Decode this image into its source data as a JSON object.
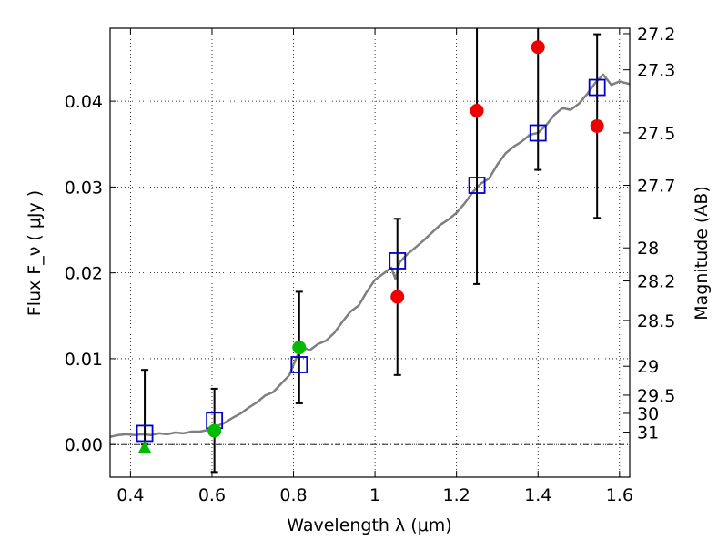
{
  "chart_data": {
    "type": "scatter",
    "xlabel": "Wavelength  λ (μm)",
    "ylabel": "Flux  F_ν  ( μJy )",
    "y2label": "Magnitude (AB)",
    "xlim": [
      0.35,
      1.625
    ],
    "ylim": [
      -0.0038,
      0.0485
    ],
    "grid": true,
    "x_ticks": [
      {
        "v": 0.4,
        "label": "0.4"
      },
      {
        "v": 0.6,
        "label": "0.6"
      },
      {
        "v": 0.8,
        "label": "0.8"
      },
      {
        "v": 1.0,
        "label": "1"
      },
      {
        "v": 1.2,
        "label": "1.2"
      },
      {
        "v": 1.4,
        "label": "1.4"
      },
      {
        "v": 1.6,
        "label": "1.6"
      }
    ],
    "y_ticks": [
      {
        "v": 0.0,
        "label": "0.00"
      },
      {
        "v": 0.01,
        "label": "0.01"
      },
      {
        "v": 0.02,
        "label": "0.02"
      },
      {
        "v": 0.03,
        "label": "0.03"
      },
      {
        "v": 0.04,
        "label": "0.04"
      }
    ],
    "magnitude_ticks": [
      {
        "mag": 27.2,
        "label": "27.2"
      },
      {
        "mag": 27.3,
        "label": "27.3"
      },
      {
        "mag": 27.5,
        "label": "27.5"
      },
      {
        "mag": 27.7,
        "label": "27.7"
      },
      {
        "mag": 28.0,
        "label": "28"
      },
      {
        "mag": 28.2,
        "label": "28.2"
      },
      {
        "mag": 28.5,
        "label": "28.5"
      },
      {
        "mag": 29.0,
        "label": "29"
      },
      {
        "mag": 29.5,
        "label": "29.5"
      },
      {
        "mag": 30.0,
        "label": "30"
      },
      {
        "mag": 31.0,
        "label": "31"
      }
    ],
    "model_spectrum": {
      "color": "#7f7f7f",
      "points": [
        [
          0.35,
          0.0009
        ],
        [
          0.37,
          0.0011
        ],
        [
          0.39,
          0.0012
        ],
        [
          0.41,
          0.0011
        ],
        [
          0.43,
          0.0012
        ],
        [
          0.45,
          0.0011
        ],
        [
          0.47,
          0.0013
        ],
        [
          0.49,
          0.0012
        ],
        [
          0.51,
          0.0014
        ],
        [
          0.53,
          0.0013
        ],
        [
          0.55,
          0.0015
        ],
        [
          0.57,
          0.0015
        ],
        [
          0.59,
          0.0017
        ],
        [
          0.61,
          0.0021
        ],
        [
          0.63,
          0.0025
        ],
        [
          0.65,
          0.0031
        ],
        [
          0.67,
          0.0036
        ],
        [
          0.69,
          0.0043
        ],
        [
          0.71,
          0.0049
        ],
        [
          0.73,
          0.0057
        ],
        [
          0.75,
          0.0061
        ],
        [
          0.77,
          0.0071
        ],
        [
          0.79,
          0.0081
        ],
        [
          0.8,
          0.0093
        ],
        [
          0.81,
          0.0104
        ],
        [
          0.82,
          0.011
        ],
        [
          0.83,
          0.0112
        ],
        [
          0.84,
          0.011
        ],
        [
          0.86,
          0.0117
        ],
        [
          0.88,
          0.0121
        ],
        [
          0.9,
          0.013
        ],
        [
          0.92,
          0.0143
        ],
        [
          0.94,
          0.0155
        ],
        [
          0.96,
          0.0162
        ],
        [
          0.98,
          0.0178
        ],
        [
          1.0,
          0.0192
        ],
        [
          1.02,
          0.0199
        ],
        [
          1.04,
          0.0206
        ],
        [
          1.05,
          0.0193
        ],
        [
          1.06,
          0.0212
        ],
        [
          1.08,
          0.0222
        ],
        [
          1.1,
          0.023
        ],
        [
          1.12,
          0.0238
        ],
        [
          1.14,
          0.0247
        ],
        [
          1.16,
          0.0256
        ],
        [
          1.18,
          0.0262
        ],
        [
          1.2,
          0.027
        ],
        [
          1.22,
          0.0281
        ],
        [
          1.24,
          0.0294
        ],
        [
          1.26,
          0.0304
        ],
        [
          1.28,
          0.031
        ],
        [
          1.3,
          0.0326
        ],
        [
          1.32,
          0.0339
        ],
        [
          1.34,
          0.0347
        ],
        [
          1.36,
          0.0353
        ],
        [
          1.38,
          0.0361
        ],
        [
          1.4,
          0.0363
        ],
        [
          1.42,
          0.0372
        ],
        [
          1.44,
          0.0384
        ],
        [
          1.46,
          0.0392
        ],
        [
          1.48,
          0.039
        ],
        [
          1.5,
          0.0397
        ],
        [
          1.52,
          0.0408
        ],
        [
          1.54,
          0.0421
        ],
        [
          1.56,
          0.0431
        ],
        [
          1.58,
          0.0419
        ],
        [
          1.6,
          0.0423
        ],
        [
          1.625,
          0.042
        ]
      ]
    },
    "model_band_fluxes": {
      "marker": "open-square",
      "color": "#0000cc",
      "points": [
        [
          0.435,
          0.0013
        ],
        [
          0.606,
          0.0028
        ],
        [
          0.814,
          0.0093
        ],
        [
          1.055,
          0.0214
        ],
        [
          1.25,
          0.0302
        ],
        [
          1.4,
          0.0363
        ],
        [
          1.545,
          0.0416
        ]
      ]
    },
    "observed_optical": {
      "marker": "filled-circle",
      "color": "#00bb00",
      "points": [
        [
          0.606,
          0.0016
        ],
        [
          0.814,
          0.0113
        ]
      ]
    },
    "optical_upper_limit": {
      "marker": "filled-triangle",
      "color": "#00bb00",
      "points": [
        [
          0.435,
          -0.0004
        ]
      ]
    },
    "observed_nir": {
      "marker": "filled-circle",
      "color": "#ee0000",
      "points": [
        [
          1.055,
          0.0172
        ],
        [
          1.25,
          0.0389
        ],
        [
          1.4,
          0.0463
        ],
        [
          1.545,
          0.0371
        ]
      ]
    },
    "error_bars": [
      {
        "x": 0.435,
        "low": 0.0,
        "high": 0.0087
      },
      {
        "x": 0.606,
        "low": -0.0032,
        "high": 0.0065
      },
      {
        "x": 0.814,
        "low": 0.0048,
        "high": 0.0178
      },
      {
        "x": 1.055,
        "low": 0.0081,
        "high": 0.0263
      },
      {
        "x": 1.25,
        "low": 0.0187,
        "high": 0.05
      },
      {
        "x": 1.4,
        "low": 0.032,
        "high": 0.05
      },
      {
        "x": 1.545,
        "low": 0.0264,
        "high": 0.0478
      }
    ]
  }
}
